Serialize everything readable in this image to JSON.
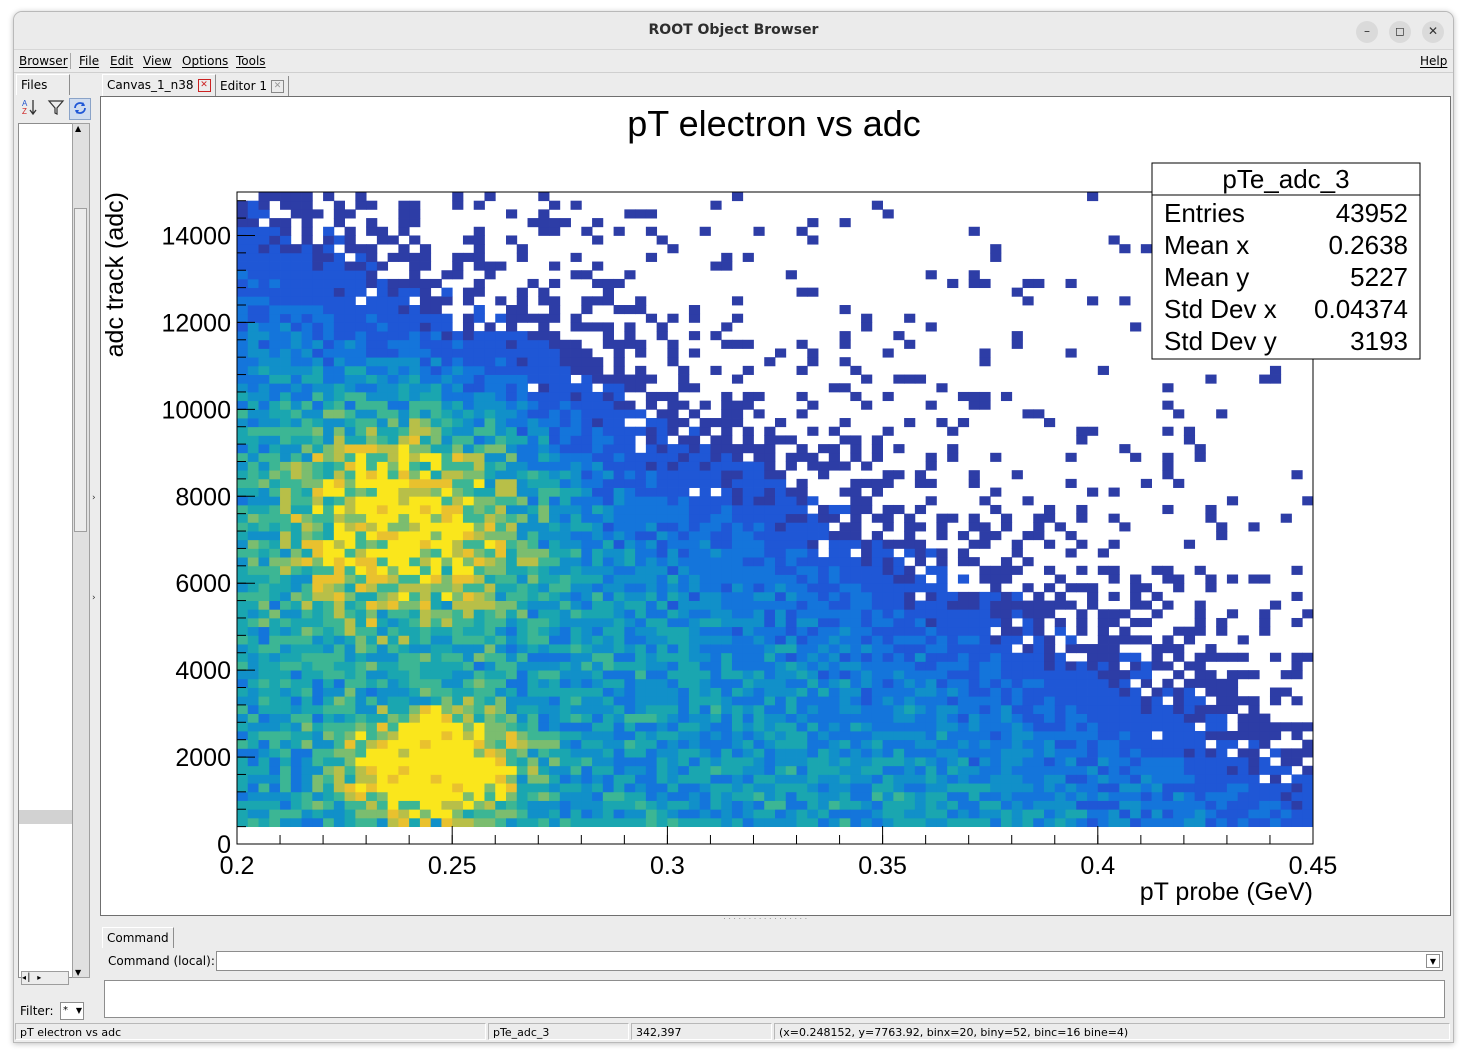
{
  "window": {
    "title": "ROOT Object Browser"
  },
  "window_buttons": {
    "minimize": "–",
    "maximize": "◻",
    "close": "✕"
  },
  "menu": {
    "browser": "Browser",
    "file": "File",
    "edit": "Edit",
    "view": "View",
    "options": "Options",
    "tools": "Tools",
    "help": "Help"
  },
  "left_panel": {
    "files_tab": "Files",
    "filter_label": "Filter:",
    "filter_value": "*"
  },
  "canvas_tabs": {
    "canvas": "Canvas_1_n38",
    "editor": "Editor 1"
  },
  "command": {
    "tab": "Command",
    "label": "Command (local):",
    "value": ""
  },
  "statusbar": {
    "object_title": "pT electron vs adc",
    "object_name": "pTe_adc_3",
    "pixel": "342,397",
    "info": "(x=0.248152, y=7763.92, binx=20, biny=52, binc=16 bine=4)"
  },
  "colors": {
    "palette": [
      "#2d3da6",
      "#1f57d6",
      "#1475db",
      "#1190c9",
      "#1aa6b0",
      "#3cb694",
      "#7bbd6f",
      "#b8bf48",
      "#e9c12e",
      "#fae61c"
    ]
  },
  "chart_data": {
    "type": "heatmap",
    "title": "pT electron vs adc",
    "xlabel": "pT probe (GeV)",
    "ylabel": "adc track (adc)",
    "xlim": [
      0.2,
      0.45
    ],
    "ylim": [
      0,
      15000
    ],
    "xticks": [
      0.2,
      0.25,
      0.3,
      0.35,
      0.4,
      0.45
    ],
    "xtick_labels": [
      "0.2",
      "0.25",
      "0.3",
      "0.35",
      "0.4",
      "0.45"
    ],
    "yticks": [
      0,
      2000,
      4000,
      6000,
      8000,
      10000,
      12000,
      14000
    ],
    "ytick_labels": [
      "0",
      "2000",
      "4000",
      "6000",
      "8000",
      "10000",
      "12000",
      "14000"
    ],
    "nbins_x": 100,
    "nbins_y": 75,
    "density_peaks": [
      {
        "x": 0.245,
        "y": 1800,
        "level": 1.0
      },
      {
        "x": 0.24,
        "y": 7500,
        "level": 0.55
      }
    ],
    "stats": {
      "name": "pTe_adc_3",
      "rows": [
        {
          "label": "Entries",
          "value": "43952"
        },
        {
          "label": "Mean x",
          "value": "0.2638"
        },
        {
          "label": "Mean y",
          "value": "5227"
        },
        {
          "label": "Std Dev x",
          "value": "0.04374"
        },
        {
          "label": "Std Dev y",
          "value": "3193"
        }
      ]
    }
  }
}
